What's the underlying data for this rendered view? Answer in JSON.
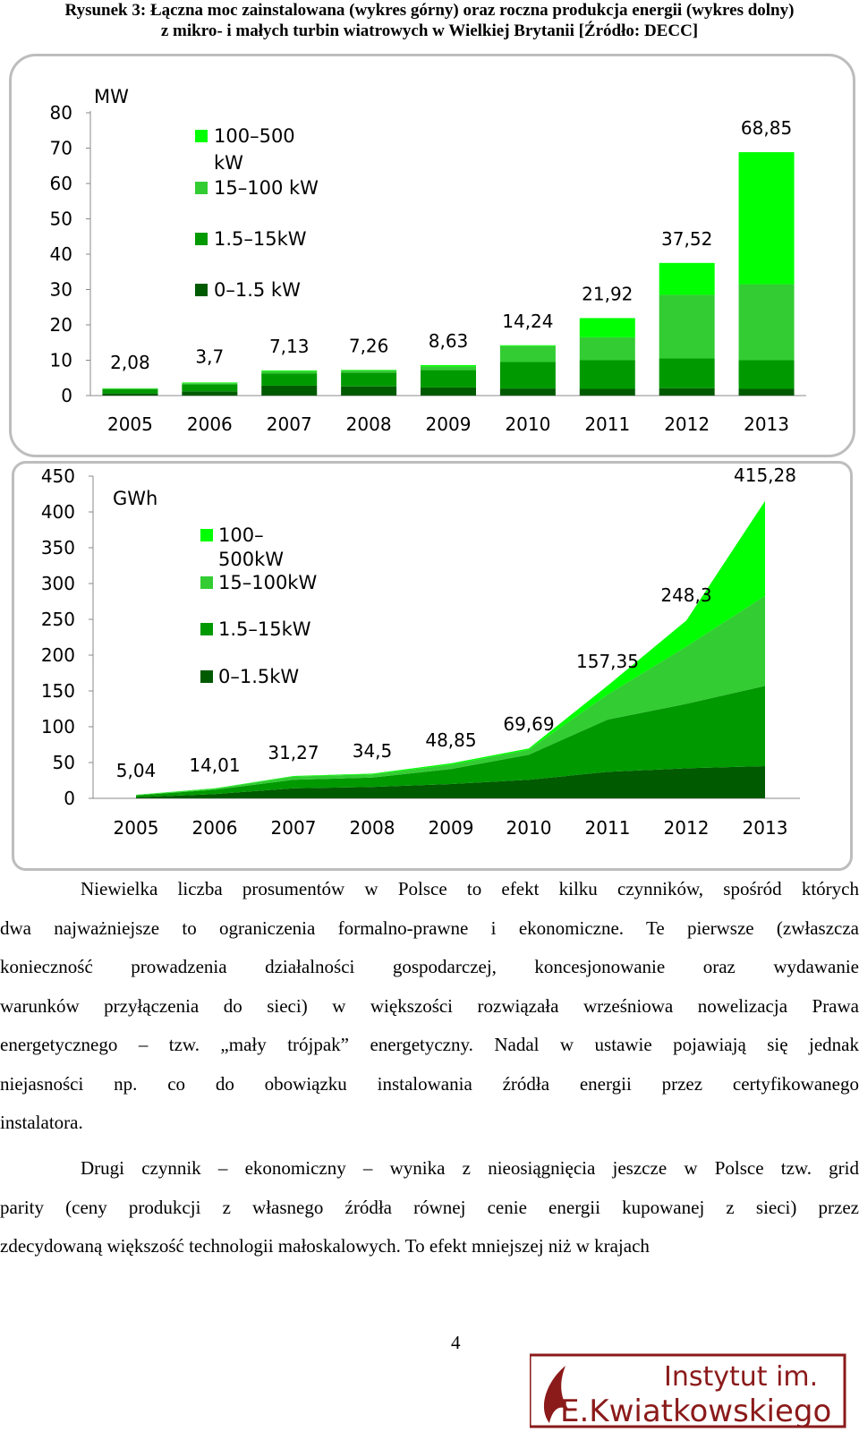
{
  "caption": {
    "line1": "Rysunek 3: Łączna moc zainstalowana (wykres górny) oraz roczna produkcja energii (wykres dolny)",
    "line2": "z mikro- i małych turbin wiatrowych w Wielkiej Brytanii [Źródło: DECC]"
  },
  "chart_data": [
    {
      "type": "bar",
      "stacked": true,
      "unit": "MW",
      "categories": [
        "2005",
        "2006",
        "2007",
        "2008",
        "2009",
        "2010",
        "2011",
        "2012",
        "2013"
      ],
      "ylim": [
        0,
        80
      ],
      "yticks": [
        "0",
        "10",
        "20",
        "30",
        "40",
        "50",
        "60",
        "70",
        "80"
      ],
      "totals_labels": [
        "2,08",
        "3,7",
        "7,13",
        "7,26",
        "8,63",
        "14,24",
        "21,92",
        "37,52",
        "68,85"
      ],
      "series": [
        {
          "name": "0–1.5  kW",
          "color": "#005a00",
          "values": [
            0.6,
            1.2,
            2.8,
            2.6,
            2.3,
            2.0,
            1.9,
            2.1,
            1.9
          ]
        },
        {
          "name": "1.5–15kW",
          "color": "#009900",
          "values": [
            1.2,
            2.0,
            3.4,
            3.9,
            4.9,
            7.5,
            8.1,
            8.4,
            8.1
          ]
        },
        {
          "name": "15–100 kW",
          "color": "#33cc33",
          "values": [
            0.2,
            0.3,
            0.7,
            0.6,
            1.0,
            4.5,
            6.5,
            18.0,
            21.5
          ]
        },
        {
          "name": "100–500 kW",
          "color": "#00ff00",
          "values": [
            0.08,
            0.2,
            0.23,
            0.16,
            0.43,
            0.24,
            5.42,
            9.02,
            37.35
          ]
        }
      ],
      "legend_labels": [
        "100–500",
        "kW",
        "15–100 kW",
        "1.5–15kW",
        "0–1.5  kW"
      ]
    },
    {
      "type": "area",
      "stacked": true,
      "unit": "GWh",
      "categories": [
        "2005",
        "2006",
        "2007",
        "2008",
        "2009",
        "2010",
        "2011",
        "2012",
        "2013"
      ],
      "ylim": [
        0,
        450
      ],
      "yticks": [
        "0",
        "50",
        "100",
        "150",
        "200",
        "250",
        "300",
        "350",
        "400",
        "450"
      ],
      "totals_labels": [
        "5,04",
        "14,01",
        "31,27",
        "34,5",
        "48,85",
        "69,69",
        "157,35",
        "248,3",
        "415,28"
      ],
      "series": [
        {
          "name": "0–1.5kW",
          "color": "#005a00",
          "values": [
            1.5,
            6,
            14,
            16,
            20,
            26,
            37,
            42,
            45
          ]
        },
        {
          "name": "1.5–15kW",
          "color": "#009900",
          "values": [
            2.5,
            6,
            12,
            13,
            21,
            35,
            73,
            90,
            112
          ]
        },
        {
          "name": "15–100kW",
          "color": "#33cc33",
          "values": [
            0.7,
            1.5,
            4.5,
            4.5,
            6,
            7,
            35,
            80,
            126
          ]
        },
        {
          "name": "100–500kW",
          "color": "#00ff00",
          "values": [
            0.34,
            0.51,
            0.77,
            1.0,
            1.85,
            1.69,
            12.35,
            36.3,
            132.28
          ]
        }
      ],
      "legend_labels": [
        "100–",
        "500kW",
        "15–100kW",
        "1.5–15kW",
        "0–1.5kW"
      ]
    }
  ],
  "paragraph1": {
    "lines": [
      "Niewielka liczba prosumentów w Polsce to efekt kilku czynników, spośród których",
      "dwa najważniejsze to ograniczenia formalno-prawne i ekonomiczne. Te pierwsze (zwłaszcza",
      "konieczność prowadzenia działalności gospodarczej, koncesjonowanie oraz wydawanie",
      "warunków przyłączenia do sieci) w większości rozwiązała wrześniowa nowelizacja Prawa",
      "energetycznego – tzw. „mały trójpak” energetyczny. Nadal w ustawie pojawiają się jednak",
      "niejasności np. co do obowiązku instalowania źródła energii przez certyfikowanego",
      "instalatora."
    ]
  },
  "paragraph2": {
    "lines": [
      "Drugi czynnik – ekonomiczny – wynika z nieosiągnięcia jeszcze w Polsce tzw. grid",
      "parity (ceny produkcji z własnego źródła równej cenie energii kupowanej z sieci) przez",
      "zdecydowaną większość technologii małoskalowych. To efekt mniejszej niż w krajach"
    ]
  },
  "page_number": "4",
  "logo": {
    "line1": "Instytut im.",
    "line2": "E.Kwiatkowskiego",
    "color": "#8b1a1a"
  }
}
